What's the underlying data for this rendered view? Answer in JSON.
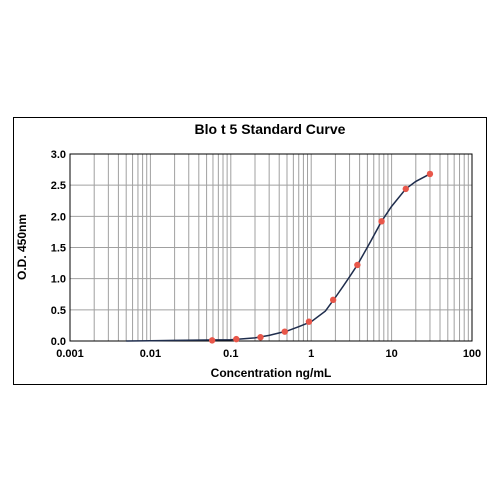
{
  "chart_data": {
    "type": "line",
    "title": "Blo t 5 Standard Curve",
    "xlabel": "Concentration ng/mL",
    "ylabel": "O.D. 450nm",
    "x_scale": "log",
    "xlim": [
      0.001,
      100
    ],
    "ylim": [
      0,
      3.0
    ],
    "x_ticks": [
      "0.001",
      "0.01",
      "0.1",
      "1",
      "10",
      "100"
    ],
    "y_ticks": [
      "0.0",
      "0.5",
      "1.0",
      "1.5",
      "2.0",
      "2.5",
      "3.0"
    ],
    "grid": true,
    "legend": "none",
    "colors": {
      "line": "#1f2d4d",
      "marker": "#e8574a",
      "grid": "#a0a0a0"
    },
    "series": [
      {
        "x": [
          0.0586,
          0.117,
          0.234,
          0.469,
          0.938,
          1.875,
          3.75,
          7.5,
          15,
          30
        ],
        "y": [
          0.01,
          0.03,
          0.06,
          0.15,
          0.31,
          0.66,
          1.22,
          1.92,
          2.44,
          2.68
        ]
      }
    ],
    "fit_curve": {
      "x": [
        0.005,
        0.01,
        0.02,
        0.05,
        0.1,
        0.2,
        0.3,
        0.5,
        0.7,
        1.0,
        1.5,
        2.0,
        2.5,
        3.0,
        3.75,
        4.5,
        5.5,
        7.5,
        10,
        15,
        20,
        30
      ],
      "y": [
        0.0,
        0.005,
        0.01,
        0.015,
        0.02,
        0.05,
        0.09,
        0.16,
        0.23,
        0.31,
        0.48,
        0.7,
        0.88,
        1.03,
        1.22,
        1.4,
        1.6,
        1.92,
        2.16,
        2.44,
        2.56,
        2.68
      ]
    }
  }
}
